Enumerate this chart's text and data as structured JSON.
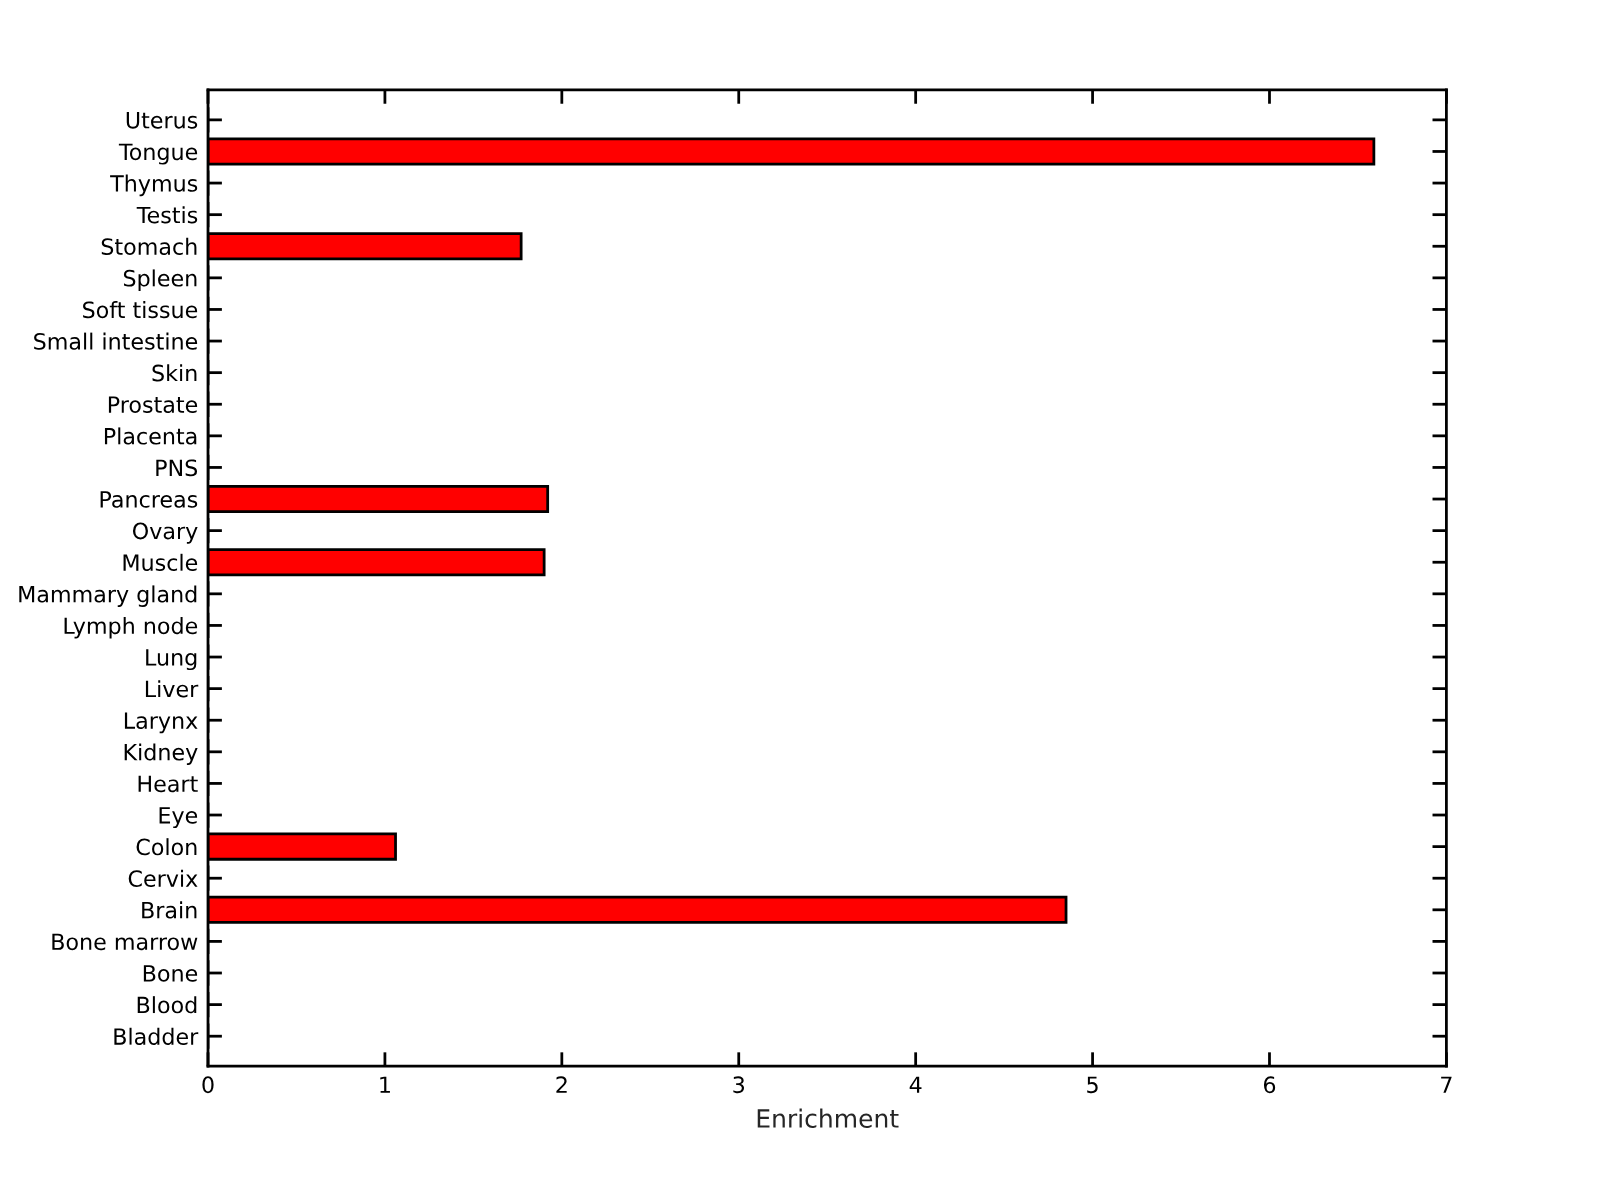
{
  "chart_data": {
    "type": "bar",
    "orientation": "horizontal",
    "xlabel": "Enrichment",
    "categories": [
      "Uterus",
      "Tongue",
      "Thymus",
      "Testis",
      "Stomach",
      "Spleen",
      "Soft tissue",
      "Small intestine",
      "Skin",
      "Prostate",
      "Placenta",
      "PNS",
      "Pancreas",
      "Ovary",
      "Muscle",
      "Mammary gland",
      "Lymph node",
      "Lung",
      "Liver",
      "Larynx",
      "Kidney",
      "Heart",
      "Eye",
      "Colon",
      "Cervix",
      "Brain",
      "Bone marrow",
      "Bone",
      "Blood",
      "Bladder"
    ],
    "values": [
      0,
      6.59,
      0,
      0,
      1.77,
      0,
      0,
      0,
      0,
      0,
      0,
      0,
      1.92,
      0,
      1.9,
      0,
      0,
      0,
      0,
      0,
      0,
      0,
      0,
      1.06,
      0,
      4.85,
      0,
      0,
      0,
      0
    ],
    "color": "#ff0000",
    "xlim": [
      0,
      7
    ],
    "xticks": [
      0,
      1,
      2,
      3,
      4,
      5,
      6,
      7
    ],
    "grid": false,
    "legend": false
  }
}
